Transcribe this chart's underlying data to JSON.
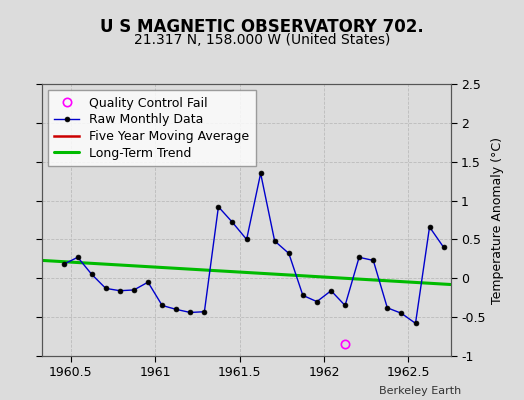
{
  "title": "U S MAGNETIC OBSERVATORY 702.",
  "subtitle": "21.317 N, 158.000 W (United States)",
  "ylabel": "Temperature Anomaly (°C)",
  "credit": "Berkeley Earth",
  "xlim": [
    1960.33,
    1962.75
  ],
  "ylim": [
    -1.0,
    2.5
  ],
  "yticks": [
    -1.0,
    -0.5,
    0.0,
    0.5,
    1.0,
    1.5,
    2.0,
    2.5
  ],
  "xticks": [
    1960.5,
    1961.0,
    1961.5,
    1962.0,
    1962.5
  ],
  "xticklabels": [
    "1960.5",
    "1961",
    "1961.5",
    "1962",
    "1962.5"
  ],
  "background_color": "#dcdcdc",
  "raw_x": [
    1960.458,
    1960.542,
    1960.625,
    1960.708,
    1960.792,
    1960.875,
    1960.958,
    1961.042,
    1961.125,
    1961.208,
    1961.292,
    1961.375,
    1961.458,
    1961.542,
    1961.625,
    1961.708,
    1961.792,
    1961.875,
    1961.958,
    1962.042,
    1962.125,
    1962.208,
    1962.292,
    1962.375,
    1962.458,
    1962.542,
    1962.625,
    1962.708
  ],
  "raw_y": [
    0.18,
    0.27,
    0.05,
    -0.13,
    -0.16,
    -0.15,
    -0.05,
    -0.35,
    -0.4,
    -0.44,
    -0.43,
    0.92,
    0.72,
    0.5,
    1.35,
    0.48,
    0.32,
    -0.22,
    -0.3,
    -0.16,
    -0.35,
    0.27,
    0.23,
    -0.38,
    -0.45,
    -0.58,
    0.66,
    0.4
  ],
  "qc_fail_x": [
    1962.125
  ],
  "qc_fail_y": [
    -0.84
  ],
  "trend_x": [
    1960.33,
    1962.75
  ],
  "trend_y": [
    0.23,
    -0.08
  ],
  "raw_line_color": "#0000cc",
  "raw_marker_color": "#000000",
  "raw_marker_size": 3.5,
  "qc_marker_color": "#ff00ff",
  "trend_color": "#00bb00",
  "mavg_color": "#cc0000",
  "grid_color": "#bbbbbb",
  "title_fontsize": 12,
  "subtitle_fontsize": 10,
  "tick_fontsize": 9,
  "legend_fontsize": 9,
  "ylabel_fontsize": 9
}
